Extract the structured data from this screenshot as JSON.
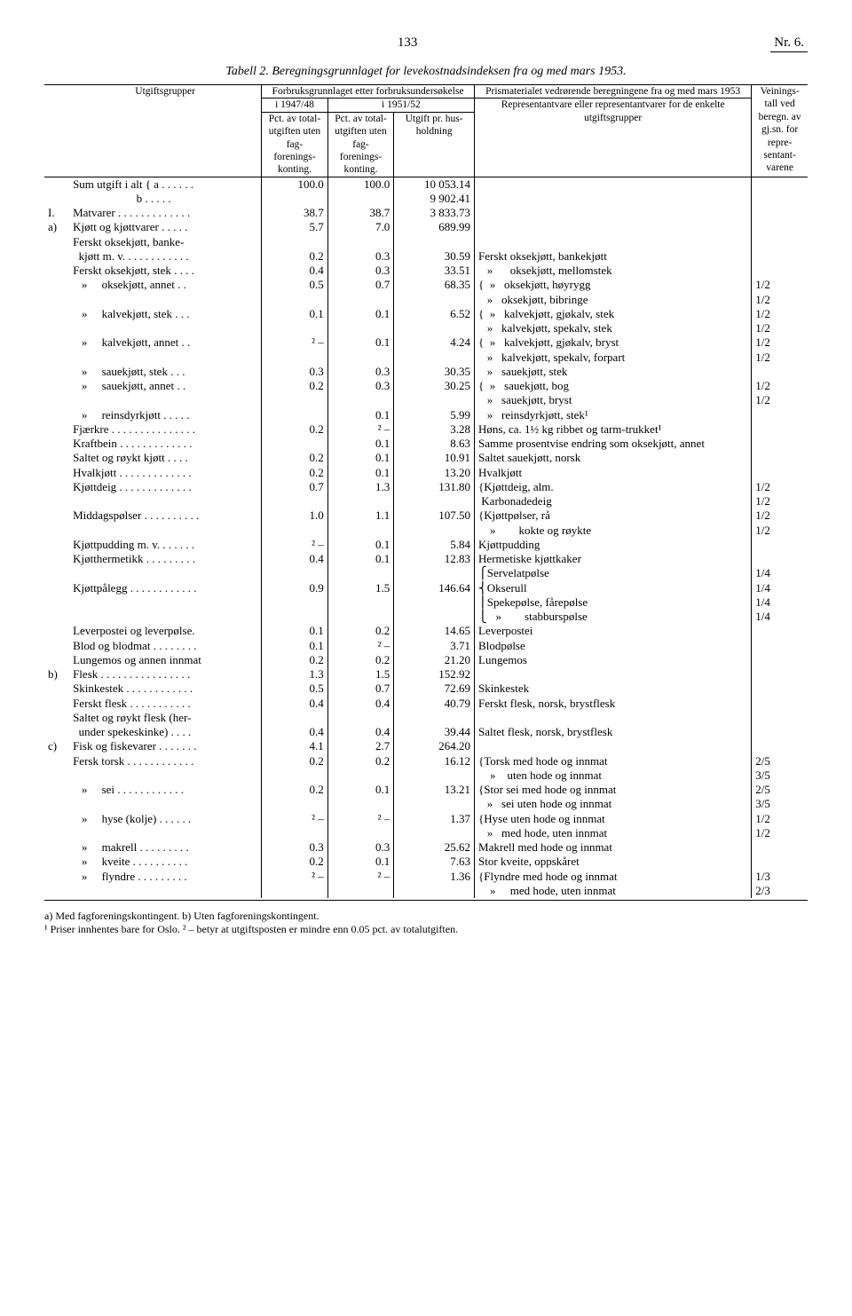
{
  "page_number": "133",
  "issue": "Nr. 6.",
  "caption": "Tabell 2. Beregningsgrunnlaget for levekostnadsindeksen fra og med mars 1953.",
  "header": {
    "col_group_left": "Forbruksgrunnlaget etter forbruksundersøkelse",
    "col_group_right": "Prismaterialet vedrørende beregningene fra og med mars 1953",
    "veinings": "Veinings-tall ved beregn. av gj.sn. for repre-sentant-varene",
    "utgiftsgrupper": "Utgiftsgrupper",
    "y1": "i 1947/48",
    "y2": "i 1951/52",
    "pct1": "Pct. av total-utgiften uten fag-forenings-konting.",
    "pct2": "Pct. av total-utgiften uten fag-forenings-konting.",
    "utgift": "Utgift pr. hus-holdning",
    "rep": "Representantvare eller representantvarer for de enkelte utgiftsgrupper"
  },
  "rows": [
    {
      "lbl": "",
      "desc": "Sum utgift i alt { a . . . . . .",
      "c1": "100.0",
      "c2": "100.0",
      "c3": "10 053.14",
      "rep": "",
      "wt": ""
    },
    {
      "lbl": "",
      "desc": "                      b . . . . .",
      "c1": "",
      "c2": "",
      "c3": "9 902.41",
      "rep": "",
      "wt": ""
    },
    {
      "lbl": "I.",
      "desc": "Matvarer . . . . . . . . . . . . .",
      "c1": "38.7",
      "c2": "38.7",
      "c3": "3 833.73",
      "rep": "",
      "wt": ""
    },
    {
      "lbl": "a)",
      "desc": "Kjøtt og kjøttvarer . . . . .",
      "c1": "5.7",
      "c2": "7.0",
      "c3": "689.99",
      "rep": "",
      "wt": ""
    },
    {
      "lbl": "",
      "desc": "Ferskt oksekjøtt, banke-",
      "c1": "",
      "c2": "",
      "c3": "",
      "rep": "",
      "wt": ""
    },
    {
      "lbl": "",
      "desc": "  kjøtt m. v. . . . . . . . . . . .",
      "c1": "0.2",
      "c2": "0.3",
      "c3": "30.59",
      "rep": "Ferskt oksekjøtt, bankekjøtt",
      "wt": ""
    },
    {
      "lbl": "",
      "desc": "Ferskt oksekjøtt, stek . . . .",
      "c1": "0.4",
      "c2": "0.3",
      "c3": "33.51",
      "rep": "   »      oksekjøtt, mellomstek",
      "wt": ""
    },
    {
      "lbl": "",
      "desc": "   »     oksekjøtt, annet . .",
      "c1": "0.5",
      "c2": "0.7",
      "c3": "68.35",
      "rep": "{  »   oksekjøtt, høyrygg",
      "wt": "1/2"
    },
    {
      "lbl": "",
      "desc": "",
      "c1": "",
      "c2": "",
      "c3": "",
      "rep": "   »   oksekjøtt, bibringe",
      "wt": "1/2"
    },
    {
      "lbl": "",
      "desc": "   »     kalvekjøtt, stek . . .",
      "c1": "0.1",
      "c2": "0.1",
      "c3": "6.52",
      "rep": "{  »   kalvekjøtt, gjøkalv, stek",
      "wt": "1/2"
    },
    {
      "lbl": "",
      "desc": "",
      "c1": "",
      "c2": "",
      "c3": "",
      "rep": "   »   kalvekjøtt, spekalv, stek",
      "wt": "1/2"
    },
    {
      "lbl": "",
      "desc": "   »     kalvekjøtt, annet . .",
      "c1": "² –",
      "c2": "0.1",
      "c3": "4.24",
      "rep": "{  »   kalvekjøtt, gjøkalv, bryst",
      "wt": "1/2"
    },
    {
      "lbl": "",
      "desc": "",
      "c1": "",
      "c2": "",
      "c3": "",
      "rep": "   »   kalvekjøtt, spekalv, forpart",
      "wt": "1/2"
    },
    {
      "lbl": "",
      "desc": "   »     sauekjøtt, stek . . .",
      "c1": "0.3",
      "c2": "0.3",
      "c3": "30.35",
      "rep": "   »   sauekjøtt, stek",
      "wt": ""
    },
    {
      "lbl": "",
      "desc": "   »     sauekjøtt, annet . .",
      "c1": "0.2",
      "c2": "0.3",
      "c3": "30.25",
      "rep": "{  »   sauekjøtt, bog",
      "wt": "1/2"
    },
    {
      "lbl": "",
      "desc": "",
      "c1": "",
      "c2": "",
      "c3": "",
      "rep": "   »   sauekjøtt, bryst",
      "wt": "1/2"
    },
    {
      "lbl": "",
      "desc": "   »     reinsdyrkjøtt . . . . .",
      "c1": "",
      "c2": "0.1",
      "c3": "5.99",
      "rep": "   »   reinsdyrkjøtt, stek¹",
      "wt": ""
    },
    {
      "lbl": "",
      "desc": "Fjærkre . . . . . . . . . . . . . . .",
      "c1": "0.2",
      "c2": "² –",
      "c3": "3.28",
      "rep": "Høns, ca. 1½ kg ribbet og tarm-trukket¹",
      "wt": ""
    },
    {
      "lbl": "",
      "desc": "Kraftbein . . . . . . . . . . . . .",
      "c1": "",
      "c2": "0.1",
      "c3": "8.63",
      "rep": "Samme prosentvise endring som oksekjøtt, annet",
      "wt": ""
    },
    {
      "lbl": "",
      "desc": "Saltet og røykt kjøtt . . . .",
      "c1": "0.2",
      "c2": "0.1",
      "c3": "10.91",
      "rep": "Saltet sauekjøtt, norsk",
      "wt": ""
    },
    {
      "lbl": "",
      "desc": "Hvalkjøtt . . . . . . . . . . . . .",
      "c1": "0.2",
      "c2": "0.1",
      "c3": "13.20",
      "rep": "Hvalkjøtt",
      "wt": ""
    },
    {
      "lbl": "",
      "desc": "Kjøttdeig . . . . . . . . . . . . .",
      "c1": "0.7",
      "c2": "1.3",
      "c3": "131.80",
      "rep": "{Kjøttdeig, alm.",
      "wt": "1/2"
    },
    {
      "lbl": "",
      "desc": "",
      "c1": "",
      "c2": "",
      "c3": "",
      "rep": " Karbonadedeig",
      "wt": "1/2"
    },
    {
      "lbl": "",
      "desc": "Middagspølser . . . . . . . . . .",
      "c1": "1.0",
      "c2": "1.1",
      "c3": "107.50",
      "rep": "{Kjøttpølser, rå",
      "wt": "1/2"
    },
    {
      "lbl": "",
      "desc": "",
      "c1": "",
      "c2": "",
      "c3": "",
      "rep": "    »        kokte og røykte",
      "wt": "1/2"
    },
    {
      "lbl": "",
      "desc": "Kjøttpudding m. v. . . . . . .",
      "c1": "² –",
      "c2": "0.1",
      "c3": "5.84",
      "rep": "Kjøttpudding",
      "wt": ""
    },
    {
      "lbl": "",
      "desc": "Kjøtthermetikk . . . . . . . . .",
      "c1": "0.4",
      "c2": "0.1",
      "c3": "12.83",
      "rep": "Hermetiske kjøttkaker",
      "wt": ""
    },
    {
      "lbl": "",
      "desc": "",
      "c1": "",
      "c2": "",
      "c3": "",
      "rep": "⎧Servelatpølse",
      "wt": "1/4"
    },
    {
      "lbl": "",
      "desc": "Kjøttpålegg . . . . . . . . . . . .",
      "c1": "0.9",
      "c2": "1.5",
      "c3": "146.64",
      "rep": "⎨Okserull",
      "wt": "1/4"
    },
    {
      "lbl": "",
      "desc": "",
      "c1": "",
      "c2": "",
      "c3": "",
      "rep": "⎪Spekepølse, fårepølse",
      "wt": "1/4"
    },
    {
      "lbl": "",
      "desc": "",
      "c1": "",
      "c2": "",
      "c3": "",
      "rep": "⎩   »        stabburspølse",
      "wt": "1/4"
    },
    {
      "lbl": "",
      "desc": "Leverpostei og leverpølse.",
      "c1": "0.1",
      "c2": "0.2",
      "c3": "14.65",
      "rep": "Leverpostei",
      "wt": ""
    },
    {
      "lbl": "",
      "desc": "Blod og blodmat . . . . . . . .",
      "c1": "0.1",
      "c2": "² –",
      "c3": "3.71",
      "rep": "Blodpølse",
      "wt": ""
    },
    {
      "lbl": "",
      "desc": "Lungemos og annen innmat",
      "c1": "0.2",
      "c2": "0.2",
      "c3": "21.20",
      "rep": "Lungemos",
      "wt": ""
    },
    {
      "lbl": "b)",
      "desc": "Flesk . . . . . . . . . . . . . . . .",
      "c1": "1.3",
      "c2": "1.5",
      "c3": "152.92",
      "rep": "",
      "wt": ""
    },
    {
      "lbl": "",
      "desc": "Skinkestek . . . . . . . . . . . .",
      "c1": "0.5",
      "c2": "0.7",
      "c3": "72.69",
      "rep": "Skinkestek",
      "wt": ""
    },
    {
      "lbl": "",
      "desc": "Ferskt flesk . . . . . . . . . . .",
      "c1": "0.4",
      "c2": "0.4",
      "c3": "40.79",
      "rep": "Ferskt flesk, norsk, brystflesk",
      "wt": ""
    },
    {
      "lbl": "",
      "desc": "Saltet og røykt flesk (her-",
      "c1": "",
      "c2": "",
      "c3": "",
      "rep": "",
      "wt": ""
    },
    {
      "lbl": "",
      "desc": "  under spekeskinke) . . . .",
      "c1": "0.4",
      "c2": "0.4",
      "c3": "39.44",
      "rep": "Saltet flesk, norsk, brystflesk",
      "wt": ""
    },
    {
      "lbl": "c)",
      "desc": "Fisk og fiskevarer . . . . . . .",
      "c1": "4.1",
      "c2": "2.7",
      "c3": "264.20",
      "rep": "",
      "wt": ""
    },
    {
      "lbl": "",
      "desc": "Fersk torsk . . . . . . . . . . . .",
      "c1": "0.2",
      "c2": "0.2",
      "c3": "16.12",
      "rep": "{Torsk med hode og innmat",
      "wt": "2/5"
    },
    {
      "lbl": "",
      "desc": "",
      "c1": "",
      "c2": "",
      "c3": "",
      "rep": "    »    uten hode og innmat",
      "wt": "3/5"
    },
    {
      "lbl": "",
      "desc": "   »     sei . . . . . . . . . . . .",
      "c1": "0.2",
      "c2": "0.1",
      "c3": "13.21",
      "rep": "{Stor sei med hode og innmat",
      "wt": "2/5"
    },
    {
      "lbl": "",
      "desc": "",
      "c1": "",
      "c2": "",
      "c3": "",
      "rep": "   »   sei uten hode og innmat",
      "wt": "3/5"
    },
    {
      "lbl": "",
      "desc": "   »     hyse (kolje) . . . . . .",
      "c1": "² –",
      "c2": "² –",
      "c3": "1.37",
      "rep": "{Hyse uten hode og innmat",
      "wt": "1/2"
    },
    {
      "lbl": "",
      "desc": "",
      "c1": "",
      "c2": "",
      "c3": "",
      "rep": "   »   med hode, uten innmat",
      "wt": "1/2"
    },
    {
      "lbl": "",
      "desc": "   »     makrell . . . . . . . . .",
      "c1": "0.3",
      "c2": "0.3",
      "c3": "25.62",
      "rep": "Makrell med hode og innmat",
      "wt": ""
    },
    {
      "lbl": "",
      "desc": "   »     kveite . . . . . . . . . .",
      "c1": "0.2",
      "c2": "0.1",
      "c3": "7.63",
      "rep": "Stor kveite, oppskåret",
      "wt": ""
    },
    {
      "lbl": "",
      "desc": "   »     flyndre . . . . . . . . .",
      "c1": "² –",
      "c2": "² –",
      "c3": "1.36",
      "rep": "{Flyndre med hode og innmat",
      "wt": "1/3"
    },
    {
      "lbl": "",
      "desc": "",
      "c1": "",
      "c2": "",
      "c3": "",
      "rep": "    »     med hode, uten innmat",
      "wt": "2/3"
    }
  ],
  "footnotes": {
    "a": "a) Med fagforeningskontingent.   b) Uten fagforeningskontingent.",
    "b": "¹ Priser innhentes bare for Oslo.   ² – betyr at utgiftsposten er mindre enn 0.05 pct. av totalutgiften."
  }
}
